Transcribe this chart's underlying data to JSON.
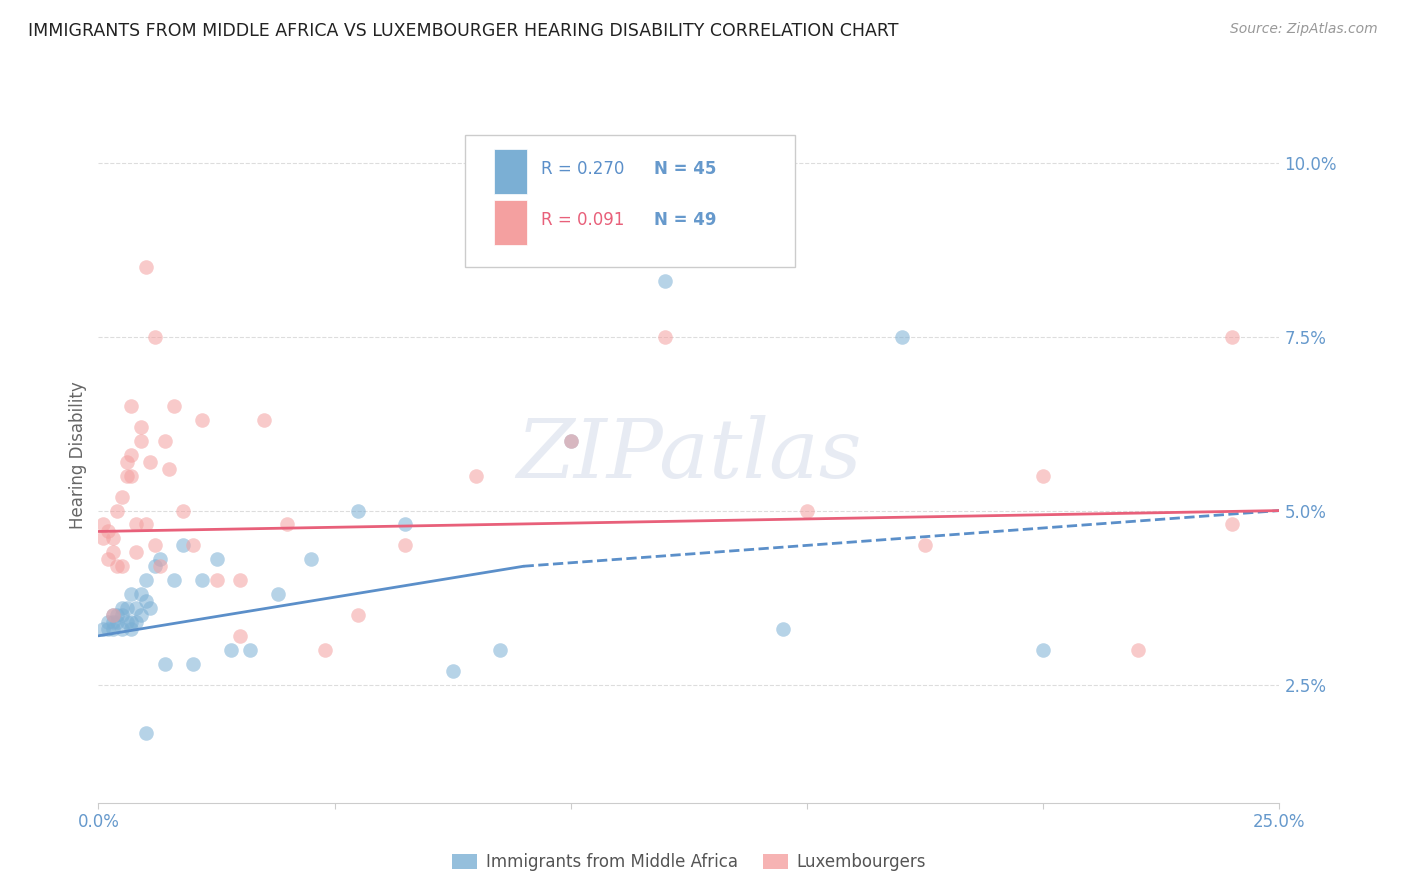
{
  "title": "IMMIGRANTS FROM MIDDLE AFRICA VS LUXEMBOURGER HEARING DISABILITY CORRELATION CHART",
  "source": "Source: ZipAtlas.com",
  "ylabel": "Hearing Disability",
  "right_yticks": [
    "10.0%",
    "7.5%",
    "5.0%",
    "2.5%"
  ],
  "right_ytick_vals": [
    0.1,
    0.075,
    0.05,
    0.025
  ],
  "xlim": [
    0.0,
    0.25
  ],
  "ylim": [
    0.008,
    0.108
  ],
  "blue_color": "#7bafd4",
  "pink_color": "#f4a0a0",
  "blue_line_color": "#5b8fc9",
  "pink_line_color": "#e8607a",
  "title_color": "#333333",
  "right_axis_color": "#6699cc",
  "watermark": "ZIPatlas",
  "blue_scatter_x": [
    0.001,
    0.002,
    0.002,
    0.003,
    0.003,
    0.003,
    0.004,
    0.004,
    0.005,
    0.005,
    0.005,
    0.006,
    0.006,
    0.007,
    0.007,
    0.007,
    0.008,
    0.008,
    0.009,
    0.009,
    0.01,
    0.01,
    0.011,
    0.012,
    0.013,
    0.014,
    0.016,
    0.018,
    0.02,
    0.022,
    0.025,
    0.028,
    0.032,
    0.038,
    0.045,
    0.055,
    0.065,
    0.075,
    0.085,
    0.1,
    0.12,
    0.145,
    0.17,
    0.2,
    0.01
  ],
  "blue_scatter_y": [
    0.033,
    0.033,
    0.034,
    0.034,
    0.035,
    0.033,
    0.035,
    0.034,
    0.033,
    0.035,
    0.036,
    0.034,
    0.036,
    0.033,
    0.034,
    0.038,
    0.034,
    0.036,
    0.035,
    0.038,
    0.04,
    0.037,
    0.036,
    0.042,
    0.043,
    0.028,
    0.04,
    0.045,
    0.028,
    0.04,
    0.043,
    0.03,
    0.03,
    0.038,
    0.043,
    0.05,
    0.048,
    0.027,
    0.03,
    0.06,
    0.083,
    0.033,
    0.075,
    0.03,
    0.018
  ],
  "pink_scatter_x": [
    0.001,
    0.001,
    0.002,
    0.002,
    0.003,
    0.003,
    0.003,
    0.004,
    0.004,
    0.005,
    0.005,
    0.006,
    0.006,
    0.007,
    0.007,
    0.007,
    0.008,
    0.008,
    0.009,
    0.009,
    0.01,
    0.011,
    0.012,
    0.013,
    0.014,
    0.015,
    0.016,
    0.018,
    0.02,
    0.025,
    0.03,
    0.035,
    0.04,
    0.048,
    0.055,
    0.065,
    0.08,
    0.1,
    0.12,
    0.15,
    0.175,
    0.2,
    0.22,
    0.24,
    0.24,
    0.01,
    0.012,
    0.022,
    0.03
  ],
  "pink_scatter_y": [
    0.046,
    0.048,
    0.043,
    0.047,
    0.035,
    0.046,
    0.044,
    0.042,
    0.05,
    0.042,
    0.052,
    0.055,
    0.057,
    0.055,
    0.058,
    0.065,
    0.044,
    0.048,
    0.06,
    0.062,
    0.048,
    0.057,
    0.045,
    0.042,
    0.06,
    0.056,
    0.065,
    0.05,
    0.045,
    0.04,
    0.04,
    0.063,
    0.048,
    0.03,
    0.035,
    0.045,
    0.055,
    0.06,
    0.075,
    0.05,
    0.045,
    0.055,
    0.03,
    0.075,
    0.048,
    0.085,
    0.075,
    0.063,
    0.032
  ],
  "blue_trend_start_x": 0.0,
  "blue_trend_start_y": 0.032,
  "blue_trend_solid_end_x": 0.09,
  "blue_trend_solid_end_y": 0.042,
  "blue_trend_dash_end_x": 0.25,
  "blue_trend_dash_end_y": 0.05,
  "pink_trend_start_x": 0.0,
  "pink_trend_start_y": 0.047,
  "pink_trend_end_x": 0.25,
  "pink_trend_end_y": 0.05,
  "grid_color": "#dddddd",
  "background_color": "#ffffff",
  "scatter_size": 110,
  "scatter_alpha": 0.55,
  "legend_r1_text": "R = 0.270",
  "legend_n1_text": "N = 45",
  "legend_r2_text": "R = 0.091",
  "legend_n2_text": "N = 49"
}
